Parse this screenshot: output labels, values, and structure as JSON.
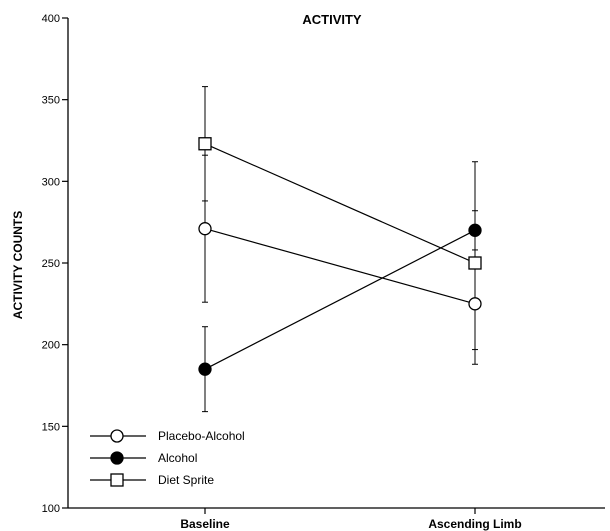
{
  "chart_data": {
    "type": "line",
    "title": "ACTIVITY",
    "xlabel": "",
    "ylabel": "ACTIVITY COUNTS",
    "categories": [
      "Baseline",
      "Ascending Limb"
    ],
    "ylim": [
      100,
      400
    ],
    "yticks": [
      100,
      150,
      200,
      250,
      300,
      350,
      400
    ],
    "grid": false,
    "legend_position": "bottom-left",
    "series": [
      {
        "name": "Placebo-Alcohol",
        "marker": "open-circle",
        "values": [
          271,
          225
        ],
        "error": [
          45,
          28
        ]
      },
      {
        "name": "Alcohol",
        "marker": "filled-circle",
        "values": [
          185,
          270
        ],
        "error": [
          26,
          12
        ]
      },
      {
        "name": "Diet Sprite",
        "marker": "open-square",
        "values": [
          323,
          250
        ],
        "error": [
          35,
          62
        ]
      }
    ]
  }
}
